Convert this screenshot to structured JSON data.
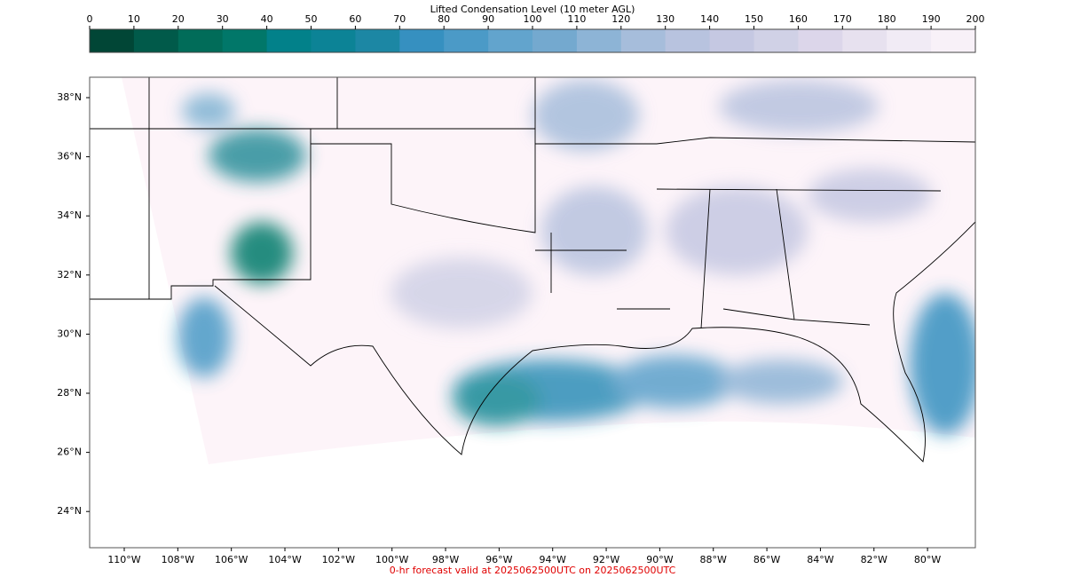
{
  "colorbar": {
    "title": "Lifted Condensation Level (10 meter AGL)",
    "ticks": [
      0,
      10,
      20,
      30,
      40,
      50,
      60,
      70,
      80,
      90,
      100,
      110,
      120,
      130,
      140,
      150,
      160,
      170,
      180,
      190,
      200
    ],
    "colors": [
      "#014636",
      "#015a4a",
      "#016c59",
      "#017769",
      "#02818a",
      "#0c8396",
      "#1c87a4",
      "#3690c0",
      "#4b9ac7",
      "#62a4cd",
      "#74a9cf",
      "#8db4d6",
      "#a6bddb",
      "#b8c3df",
      "#c5c8e2",
      "#d0d1e6",
      "#dcd6ea",
      "#e7e1ef",
      "#f1ebf5",
      "#f8f1f8",
      "#fff7fb"
    ]
  },
  "map": {
    "lat_ticks": [
      {
        "value": 38,
        "label": "38°N"
      },
      {
        "value": 36,
        "label": "36°N"
      },
      {
        "value": 34,
        "label": "34°N"
      },
      {
        "value": 32,
        "label": "32°N"
      },
      {
        "value": 30,
        "label": "30°N"
      },
      {
        "value": 28,
        "label": "28°N"
      },
      {
        "value": 26,
        "label": "26°N"
      },
      {
        "value": 24,
        "label": "24°N"
      }
    ],
    "lon_ticks": [
      {
        "value": -110,
        "label": "110°W"
      },
      {
        "value": -108,
        "label": "108°W"
      },
      {
        "value": -106,
        "label": "106°W"
      },
      {
        "value": -104,
        "label": "104°W"
      },
      {
        "value": -102,
        "label": "102°W"
      },
      {
        "value": -100,
        "label": "100°W"
      },
      {
        "value": -98,
        "label": "98°W"
      },
      {
        "value": -96,
        "label": "96°W"
      },
      {
        "value": -94,
        "label": "94°W"
      },
      {
        "value": -92,
        "label": "92°W"
      },
      {
        "value": -90,
        "label": "90°W"
      },
      {
        "value": -88,
        "label": "88°W"
      },
      {
        "value": -86,
        "label": "86°W"
      },
      {
        "value": -84,
        "label": "84°W"
      },
      {
        "value": -82,
        "label": "82°W"
      },
      {
        "value": -80,
        "label": "80°W"
      }
    ]
  },
  "footer": "0-hr forecast valid at 2025062500UTC on 2025062500UTC"
}
